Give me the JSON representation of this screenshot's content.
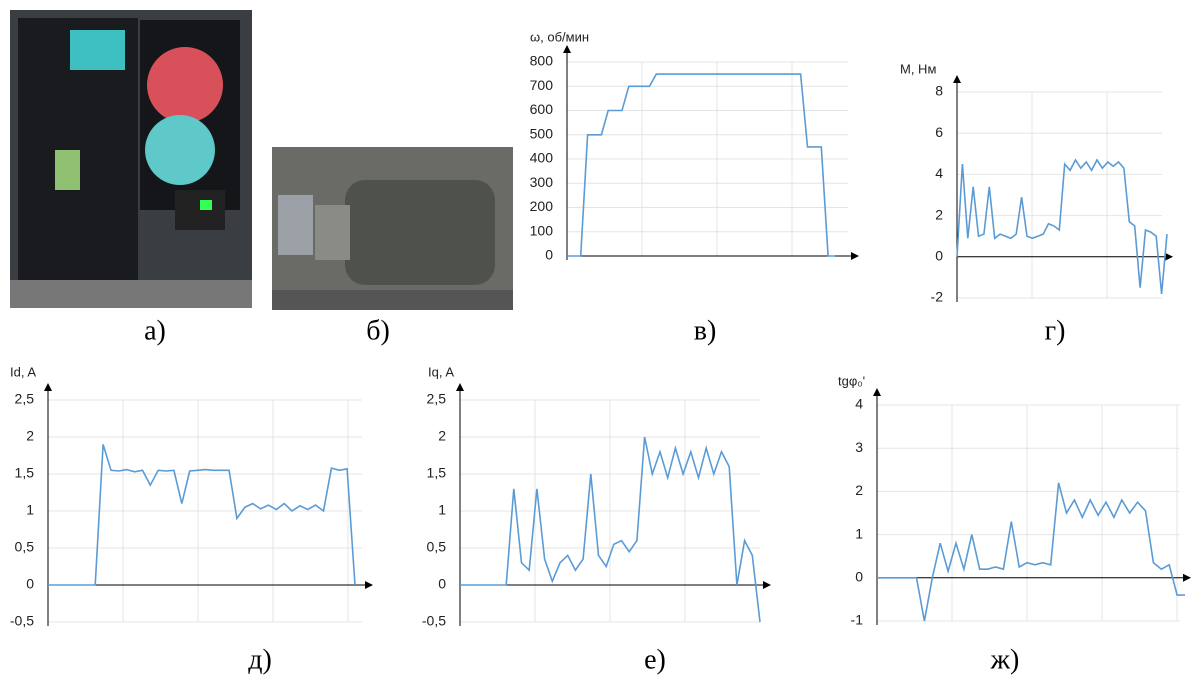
{
  "figure": {
    "panels": [
      {
        "label": "а)"
      },
      {
        "label": "б)"
      }
    ]
  },
  "chart_data": [
    {
      "type": "line",
      "y_label": "ω, об/мин",
      "panel_label": "в)",
      "color": "#5b9bd5",
      "grid": true,
      "ylim": [
        0,
        800
      ],
      "yticks": [
        0,
        100,
        200,
        300,
        400,
        500,
        600,
        700,
        800
      ],
      "values": [
        0,
        0,
        0,
        500,
        500,
        500,
        600,
        600,
        600,
        700,
        700,
        700,
        700,
        750,
        750,
        750,
        750,
        750,
        750,
        750,
        750,
        750,
        750,
        750,
        750,
        750,
        750,
        750,
        750,
        750,
        750,
        750,
        750,
        750,
        750,
        450,
        450,
        450,
        0,
        0
      ]
    },
    {
      "type": "line",
      "y_label": "M, Нм",
      "panel_label": "г)",
      "color": "#5b9bd5",
      "grid": true,
      "ylim": [
        -2,
        8
      ],
      "yticks": [
        -2,
        0,
        2,
        4,
        6,
        8
      ],
      "values": [
        0,
        4.5,
        0.9,
        3.4,
        1.0,
        1.1,
        3.4,
        0.9,
        1.1,
        1.0,
        0.9,
        1.1,
        2.9,
        1.0,
        0.9,
        1.0,
        1.1,
        1.6,
        1.5,
        1.3,
        4.5,
        4.2,
        4.7,
        4.3,
        4.6,
        4.2,
        4.7,
        4.3,
        4.6,
        4.4,
        4.6,
        4.3,
        1.7,
        1.5,
        -1.5,
        1.3,
        1.2,
        1.0,
        -1.8,
        1.1
      ]
    },
    {
      "type": "line",
      "y_label": "Id, A",
      "panel_label": "д)",
      "color": "#5b9bd5",
      "grid": true,
      "ylim": [
        -0.5,
        2.5
      ],
      "yticks": [
        {
          "value": -0.5,
          "label": "-0,5"
        },
        0,
        {
          "value": 0.5,
          "label": "0,5"
        },
        1,
        {
          "value": 1.5,
          "label": "1,5"
        },
        2,
        {
          "value": 2.5,
          "label": "2,5"
        }
      ],
      "values": [
        0,
        0,
        0,
        0,
        0,
        0,
        0,
        1.9,
        1.55,
        1.54,
        1.56,
        1.53,
        1.55,
        1.35,
        1.55,
        1.54,
        1.55,
        1.1,
        1.54,
        1.55,
        1.56,
        1.55,
        1.55,
        1.55,
        0.9,
        1.05,
        1.1,
        1.03,
        1.08,
        1.02,
        1.1,
        1.0,
        1.07,
        1.02,
        1.08,
        1.0,
        1.58,
        1.55,
        1.57,
        0
      ]
    },
    {
      "type": "line",
      "y_label": "Iq, A",
      "panel_label": "е)",
      "color": "#5b9bd5",
      "grid": true,
      "ylim": [
        -0.5,
        2.5
      ],
      "yticks": [
        {
          "value": -0.5,
          "label": "-0,5"
        },
        0,
        {
          "value": 0.5,
          "label": "0,5"
        },
        1,
        {
          "value": 1.5,
          "label": "1,5"
        },
        2,
        {
          "value": 2.5,
          "label": "2,5"
        }
      ],
      "values": [
        0,
        0,
        0,
        0,
        0,
        0,
        0,
        1.3,
        0.3,
        0.2,
        1.3,
        0.35,
        0.05,
        0.3,
        0.4,
        0.2,
        0.35,
        1.5,
        0.4,
        0.25,
        0.55,
        0.6,
        0.45,
        0.6,
        2.0,
        1.5,
        1.8,
        1.45,
        1.85,
        1.5,
        1.8,
        1.45,
        1.85,
        1.5,
        1.8,
        1.6,
        0,
        0.6,
        0.4,
        -0.5
      ]
    },
    {
      "type": "line",
      "y_label": "tgφ₀'",
      "panel_label": "ж)",
      "color": "#5b9bd5",
      "grid": true,
      "ylim": [
        -1,
        4
      ],
      "yticks": [
        -1,
        0,
        1,
        2,
        3,
        4
      ],
      "values": [
        0,
        0,
        0,
        0,
        0,
        0,
        -1,
        0,
        0.8,
        0.15,
        0.8,
        0.2,
        1.0,
        0.2,
        0.2,
        0.25,
        0.2,
        1.3,
        0.25,
        0.35,
        0.3,
        0.35,
        0.3,
        2.2,
        1.5,
        1.8,
        1.4,
        1.8,
        1.45,
        1.75,
        1.4,
        1.8,
        1.5,
        1.75,
        1.55,
        0.35,
        0.2,
        0.3,
        -0.4,
        -0.4
      ]
    }
  ]
}
